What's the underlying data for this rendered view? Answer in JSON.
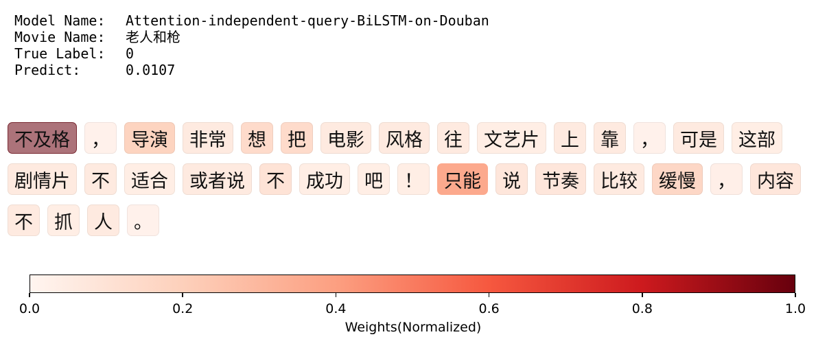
{
  "chart_data": {
    "type": "heatmap",
    "meta": [
      {
        "key": "Model Name:",
        "value": "Attention-independent-query-BiLSTM-on-Douban"
      },
      {
        "key": "Movie Name:",
        "value": "老人和枪"
      },
      {
        "key": "True Label:",
        "value": "0"
      },
      {
        "key": "Predict:",
        "value": "0.0107"
      }
    ],
    "tokens": [
      [
        {
          "text": "不及格",
          "weight": 1.0
        },
        {
          "text": "，",
          "weight": 0.02
        },
        {
          "text": "导演",
          "weight": 0.18
        },
        {
          "text": "非常",
          "weight": 0.06
        },
        {
          "text": "想",
          "weight": 0.14
        },
        {
          "text": "把",
          "weight": 0.14
        },
        {
          "text": "电影",
          "weight": 0.06
        },
        {
          "text": "风格",
          "weight": 0.06
        },
        {
          "text": "往",
          "weight": 0.06
        },
        {
          "text": "文艺片",
          "weight": 0.04
        },
        {
          "text": "上",
          "weight": 0.06
        },
        {
          "text": "靠",
          "weight": 0.06
        },
        {
          "text": "，",
          "weight": 0.02
        },
        {
          "text": "可是",
          "weight": 0.06
        },
        {
          "text": "这部",
          "weight": 0.04
        }
      ],
      [
        {
          "text": "剧情片",
          "weight": 0.06
        },
        {
          "text": "不",
          "weight": 0.06
        },
        {
          "text": "适合",
          "weight": 0.04
        },
        {
          "text": "或者说",
          "weight": 0.06
        },
        {
          "text": "不",
          "weight": 0.1
        },
        {
          "text": "成功",
          "weight": 0.04
        },
        {
          "text": "吧",
          "weight": 0.04
        },
        {
          "text": "！",
          "weight": 0.04
        },
        {
          "text": "只能",
          "weight": 0.36
        },
        {
          "text": "说",
          "weight": 0.08
        },
        {
          "text": "节奏",
          "weight": 0.08
        },
        {
          "text": "比较",
          "weight": 0.06
        },
        {
          "text": "缓慢",
          "weight": 0.16
        },
        {
          "text": "，",
          "weight": 0.03
        },
        {
          "text": "内容",
          "weight": 0.08
        }
      ],
      [
        {
          "text": "不",
          "weight": 0.06
        },
        {
          "text": "抓",
          "weight": 0.04
        },
        {
          "text": "人",
          "weight": 0.06
        },
        {
          "text": "。",
          "weight": 0.02
        }
      ]
    ],
    "colorbar": {
      "label": "Weights(Normalized)",
      "ticks": [
        "0.0",
        "0.2",
        "0.4",
        "0.6",
        "0.8",
        "1.0"
      ],
      "range": [
        0,
        1
      ],
      "colormap": [
        "#fff5f0",
        "#fdd0bb",
        "#fc9f81",
        "#f6583f",
        "#cd1a1e",
        "#67000d"
      ]
    }
  }
}
